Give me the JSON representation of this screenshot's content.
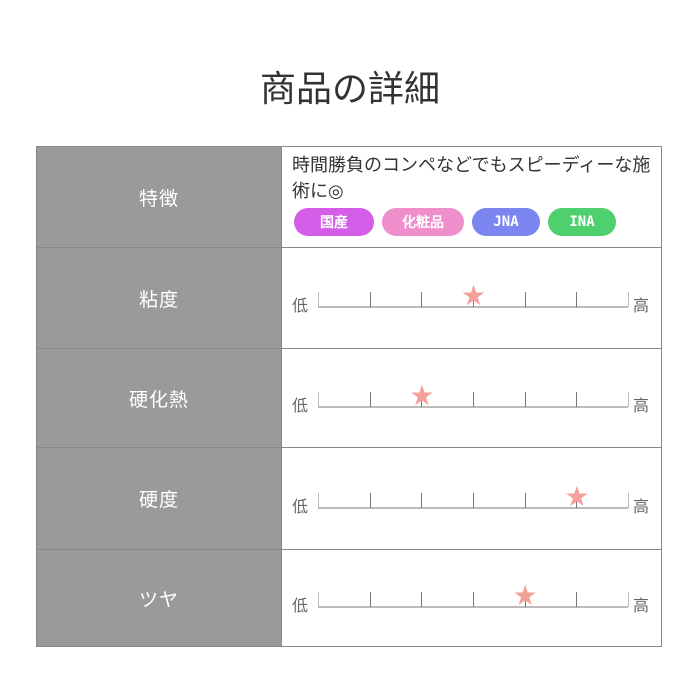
{
  "title": "商品の詳細",
  "rows": [
    {
      "label": "特徴",
      "description": "時間勝負のコンペなどでもスピーディーな施術に◎",
      "tags": [
        {
          "label": "国産",
          "color": "#d45ee8"
        },
        {
          "label": "化粧品",
          "color": "#ee8fcc"
        },
        {
          "label": "JNA",
          "color": "#7b86f0"
        },
        {
          "label": "INA",
          "color": "#4fcf6e"
        }
      ]
    },
    {
      "label": "粘度",
      "low": "低",
      "high": "高",
      "value": 3,
      "max": 6
    },
    {
      "label": "硬化熱",
      "low": "低",
      "high": "高",
      "value": 2,
      "max": 6
    },
    {
      "label": "硬度",
      "low": "低",
      "high": "高",
      "value": 5,
      "max": 6
    },
    {
      "label": "ツヤ",
      "low": "低",
      "high": "高",
      "value": 4,
      "max": 6
    }
  ],
  "star_color": "#f4a09a"
}
